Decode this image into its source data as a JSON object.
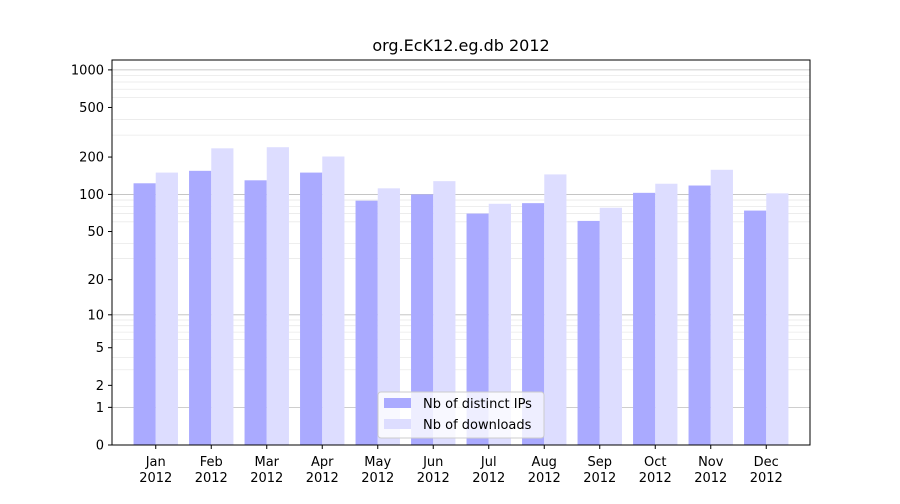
{
  "chart_data": {
    "type": "bar",
    "title": "org.EcK12.eg.db 2012",
    "xlabel": "",
    "ylabel": "",
    "yscale": "log(1+y)",
    "ylim": [
      0,
      1200
    ],
    "yticks": [
      0,
      1,
      2,
      5,
      10,
      20,
      50,
      100,
      200,
      500,
      1000
    ],
    "ytick_labels": [
      "0",
      "1",
      "2",
      "5",
      "10",
      "20",
      "50",
      "100",
      "200",
      "500",
      "1000"
    ],
    "categories": [
      "Jan\n2012",
      "Feb\n2012",
      "Mar\n2012",
      "Apr\n2012",
      "May\n2012",
      "Jun\n2012",
      "Jul\n2012",
      "Aug\n2012",
      "Sep\n2012",
      "Oct\n2012",
      "Nov\n2012",
      "Dec\n2012"
    ],
    "series": [
      {
        "name": "Nb of distinct IPs",
        "color": "#aaaaff",
        "values": [
          123,
          155,
          130,
          150,
          89,
          100,
          70,
          85,
          61,
          103,
          118,
          74
        ]
      },
      {
        "name": "Nb of downloads",
        "color": "#ddddff",
        "values": [
          150,
          235,
          240,
          202,
          112,
          128,
          84,
          145,
          78,
          122,
          158,
          102
        ]
      }
    ],
    "grid": true,
    "legend_position": "lower center"
  }
}
